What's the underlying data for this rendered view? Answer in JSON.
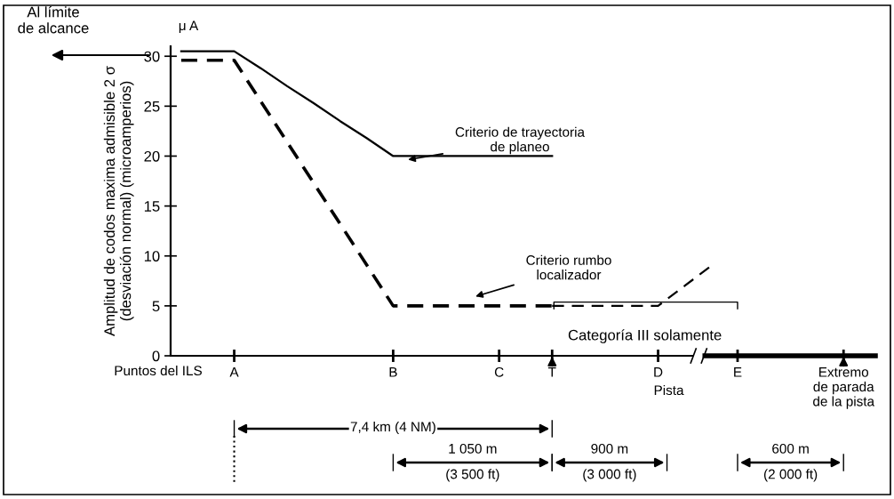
{
  "chart_data": {
    "type": "line",
    "ylabel": "Amplitud de codos maxima admisible 2 σ\n(desviación normal) (microamperios)",
    "ylim": [
      0,
      31
    ],
    "yticks": [
      0,
      5,
      10,
      15,
      20,
      25,
      30
    ],
    "categories": [
      null,
      null,
      "A",
      null,
      null,
      null,
      null,
      null,
      "B",
      null,
      null,
      null,
      "C",
      null,
      "T",
      null,
      null,
      null,
      "D",
      null,
      null,
      "E",
      null,
      null,
      null,
      "Extremo\nde parada\nde la pista"
    ],
    "series": [
      {
        "color": "#000000",
        "line_style": "solid",
        "values": [
          30.5,
          30.5,
          30.5,
          28.8,
          27,
          25.3,
          23.5,
          21.8,
          20,
          20,
          20,
          20,
          20,
          20,
          20,
          null,
          null,
          null,
          null,
          null,
          null,
          null,
          null,
          null,
          null,
          null
        ]
      },
      {
        "color": "#000000",
        "line_style": "dashed",
        "values": [
          29.6,
          29.6,
          29.6,
          25.5,
          21.4,
          17.3,
          13.2,
          9.1,
          5,
          5,
          5,
          5,
          5,
          5,
          5,
          null,
          null,
          null,
          null,
          null,
          null,
          null,
          null,
          null,
          null,
          null
        ]
      },
      {
        "color": "#000000",
        "line_style": "dashed",
        "values": [
          null,
          null,
          null,
          null,
          null,
          null,
          null,
          null,
          null,
          null,
          null,
          null,
          null,
          null,
          5,
          5,
          5,
          5,
          5,
          7,
          9,
          null,
          null,
          null,
          null,
          null
        ]
      }
    ],
    "annotations": [
      "Al límite\nde alcance",
      "μ A",
      "Criterio de trayectoria\nde planeo",
      "Criterio rumbo\nlocalizador",
      "Categoría III solamente",
      "Puntos del ILS",
      "Pista",
      "7,4 km (4 NM)",
      "1 050 m\n(3 500 ft)",
      "900 m\n(3 000 ft)",
      "600 m\n(2 000 ft)"
    ],
    "grid": false,
    "marker": "none",
    "legend": false
  }
}
